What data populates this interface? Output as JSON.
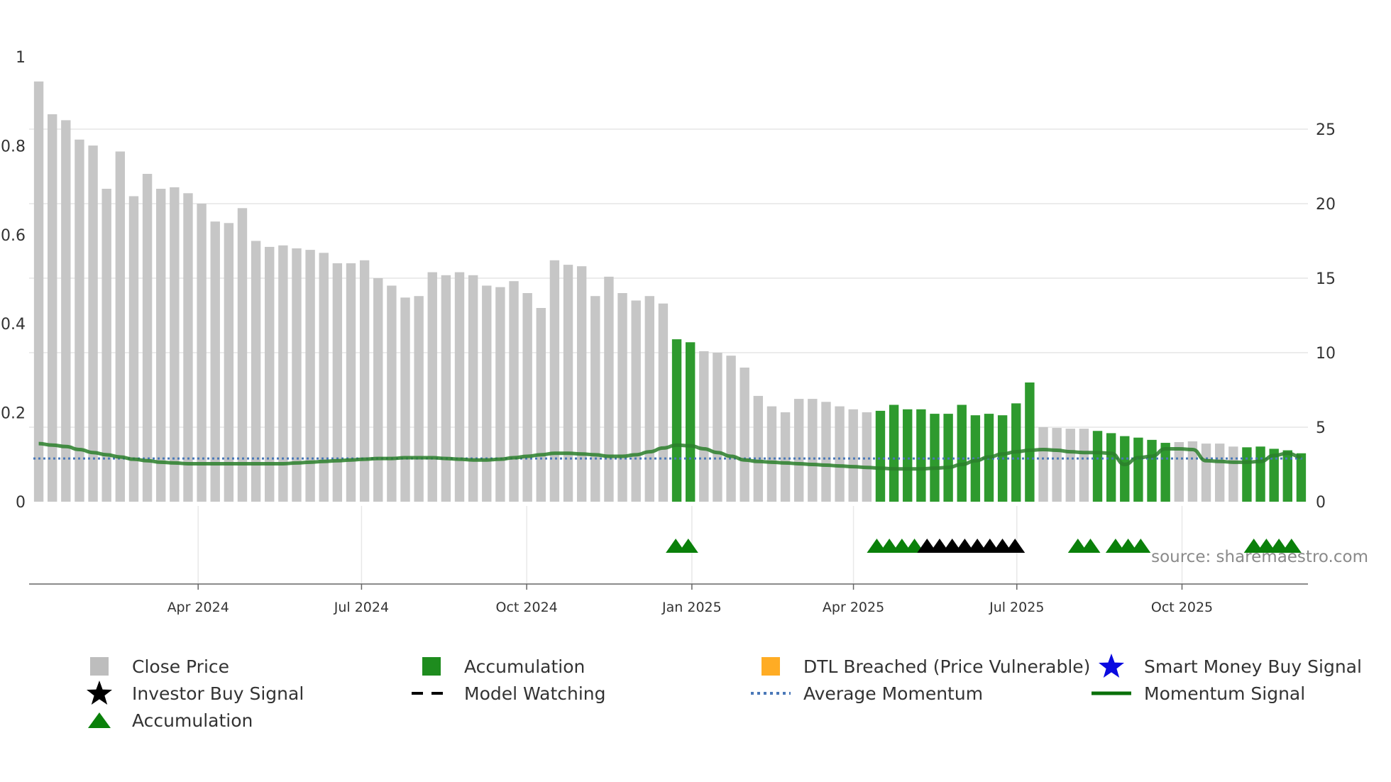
{
  "chart_data": {
    "type": "bar",
    "title": "",
    "source": "source: sharemaestro.com",
    "bar_series_name": "Close Price",
    "left_axis": {
      "ylim": [
        0,
        1
      ],
      "ticks": [
        "0",
        "0.2",
        "0.4",
        "0.6",
        "0.8",
        "1"
      ]
    },
    "right_axis": {
      "ylim": [
        0,
        30
      ],
      "ticks": [
        "0",
        "5",
        "10",
        "15",
        "20",
        "25"
      ]
    },
    "x_ticks": [
      "Apr 2024",
      "Jul 2024",
      "Oct 2024",
      "Jan 2025",
      "Apr 2025",
      "Jul 2025",
      "Oct 2025"
    ],
    "close_prices": [
      28.2,
      26.0,
      25.6,
      24.3,
      23.9,
      21.0,
      23.5,
      20.5,
      22.0,
      21.0,
      21.1,
      20.7,
      20.0,
      18.8,
      18.7,
      19.7,
      17.5,
      17.1,
      17.2,
      17.0,
      16.9,
      16.7,
      16.0,
      16.0,
      16.2,
      15.0,
      14.5,
      13.7,
      13.8,
      15.4,
      15.2,
      15.4,
      15.2,
      14.5,
      14.4,
      14.8,
      14.0,
      13.0,
      16.2,
      15.9,
      15.8,
      13.8,
      15.1,
      14.0,
      13.5,
      13.8,
      13.3,
      10.9,
      10.7,
      10.1,
      10.0,
      9.8,
      9.0,
      7.1,
      6.4,
      6.0,
      6.9,
      6.9,
      6.7,
      6.4,
      6.2,
      6.0,
      6.1,
      6.5,
      6.2,
      6.2,
      5.9,
      5.9,
      6.5,
      5.8,
      5.9,
      5.8,
      6.6,
      8.0,
      5.0,
      4.95,
      4.9,
      4.9,
      4.75,
      4.6,
      4.4,
      4.3,
      4.15,
      3.95,
      4.0,
      4.05,
      3.9,
      3.9,
      3.7,
      3.65,
      3.7,
      3.55,
      3.45,
      3.25
    ],
    "accumulation_flags": [
      0,
      0,
      0,
      0,
      0,
      0,
      0,
      0,
      0,
      0,
      0,
      0,
      0,
      0,
      0,
      0,
      0,
      0,
      0,
      0,
      0,
      0,
      0,
      0,
      0,
      0,
      0,
      0,
      0,
      0,
      0,
      0,
      0,
      0,
      0,
      0,
      0,
      0,
      0,
      0,
      0,
      0,
      0,
      0,
      0,
      0,
      0,
      1,
      1,
      0,
      0,
      0,
      0,
      0,
      0,
      0,
      0,
      0,
      0,
      0,
      0,
      0,
      1,
      1,
      1,
      1,
      1,
      1,
      1,
      1,
      1,
      1,
      1,
      1,
      0,
      0,
      0,
      0,
      1,
      1,
      1,
      1,
      1,
      1,
      0,
      0,
      0,
      0,
      0,
      1,
      1,
      1,
      1,
      1
    ],
    "momentum_signal": [
      3.9,
      3.8,
      3.7,
      3.5,
      3.3,
      3.15,
      3.0,
      2.85,
      2.75,
      2.65,
      2.6,
      2.55,
      2.55,
      2.55,
      2.55,
      2.55,
      2.55,
      2.55,
      2.55,
      2.6,
      2.65,
      2.7,
      2.75,
      2.8,
      2.85,
      2.9,
      2.9,
      2.95,
      2.95,
      2.95,
      2.9,
      2.85,
      2.8,
      2.8,
      2.85,
      2.95,
      3.05,
      3.15,
      3.25,
      3.25,
      3.2,
      3.15,
      3.05,
      3.05,
      3.15,
      3.35,
      3.6,
      3.8,
      3.75,
      3.55,
      3.3,
      3.05,
      2.8,
      2.7,
      2.65,
      2.6,
      2.55,
      2.5,
      2.45,
      2.4,
      2.35,
      2.3,
      2.25,
      2.2,
      2.2,
      2.2,
      2.25,
      2.3,
      2.5,
      2.75,
      3.0,
      3.2,
      3.35,
      3.45,
      3.5,
      3.45,
      3.35,
      3.3,
      3.3,
      3.25,
      2.5,
      2.95,
      3.05,
      3.55,
      3.55,
      3.5,
      2.75,
      2.7,
      2.65,
      2.65,
      2.7,
      3.1,
      3.25,
      3.0
    ],
    "average_momentum": 2.9,
    "accumulation_marker_dates": [
      "2024-12-23",
      "2024-12-30",
      "2025-04-14",
      "2025-04-21",
      "2025-04-28",
      "2025-05-05",
      "2025-08-04",
      "2025-08-11",
      "2025-08-25",
      "2025-09-01",
      "2025-09-08",
      "2025-11-10",
      "2025-11-17",
      "2025-11-24",
      "2025-12-01"
    ],
    "investor_buy_marker_dates": [
      "2025-05-12",
      "2025-05-19",
      "2025-05-26",
      "2025-06-02",
      "2025-06-09",
      "2025-06-16",
      "2025-06-23",
      "2025-06-30"
    ],
    "legend": [
      {
        "label": "Close Price",
        "symbol": "square-gray"
      },
      {
        "label": "Accumulation",
        "symbol": "square-green"
      },
      {
        "label": "DTL Breached (Price Vulnerable)",
        "symbol": "square-orange"
      },
      {
        "label": "Smart Money Buy Signal",
        "symbol": "star-blue"
      },
      {
        "label": "Investor Buy Signal",
        "symbol": "star-black"
      },
      {
        "label": "Model Watching",
        "symbol": "dash-black"
      },
      {
        "label": "Average Momentum",
        "symbol": "dotted-blue"
      },
      {
        "label": "Momentum Signal",
        "symbol": "line-green"
      },
      {
        "label": "Accumulation",
        "symbol": "triangle-green"
      }
    ],
    "colors": {
      "close_price": "#c6c6c6",
      "accumulation": "#2e9a2e",
      "dtl": "#ffac24",
      "smart_money": "#0a0ae0",
      "investor": "#000000",
      "model_watching": "#000000",
      "average_momentum": "#4a78b8",
      "momentum": "#2a7f2a",
      "triangle": "#0a800a"
    }
  }
}
